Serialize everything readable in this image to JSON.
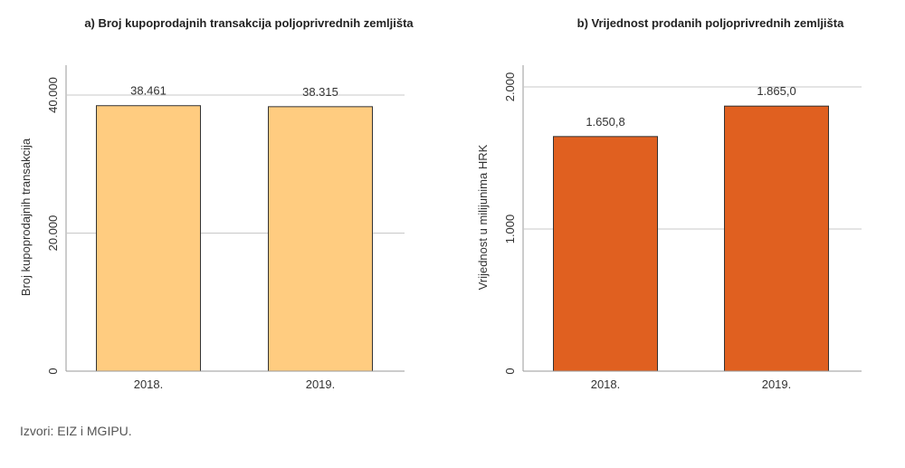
{
  "chart_data": [
    {
      "type": "bar",
      "title": "a) Broj kupoprodajnih transakcija poljoprivrednih zemljišta",
      "ylabel": "Broj kupoprodajnih transakcija",
      "xlabel": "",
      "categories": [
        "2018.",
        "2019."
      ],
      "values": [
        38461,
        38315
      ],
      "value_labels": [
        "38.461",
        "38.315"
      ],
      "ylim": [
        0,
        40000
      ],
      "yticks": [
        0,
        20000,
        40000
      ],
      "ytick_labels": [
        "0",
        "20.000",
        "40.000"
      ],
      "bar_color": "#ffcc80",
      "grid": true
    },
    {
      "type": "bar",
      "title": "b) Vrijednost prodanih poljoprivrednih zemljišta",
      "ylabel": "Vrijednost u milijunima HRK",
      "xlabel": "",
      "categories": [
        "2018.",
        "2019."
      ],
      "values": [
        1650.8,
        1865.0
      ],
      "value_labels": [
        "1.650,8",
        "1.865,0"
      ],
      "ylim": [
        0,
        2000
      ],
      "yticks": [
        0,
        1000,
        2000
      ],
      "ytick_labels": [
        "0",
        "1.000",
        "2.000"
      ],
      "bar_color": "#e06020",
      "grid": true
    }
  ],
  "source": "Izvori: EIZ i MGIPU."
}
